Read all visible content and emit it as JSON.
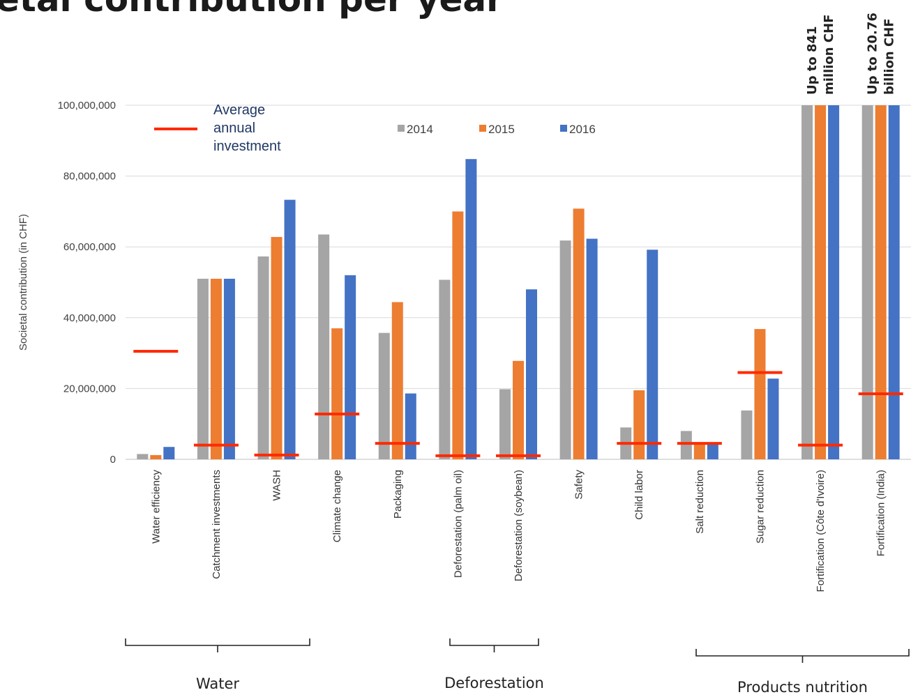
{
  "title": "etal contribution per year",
  "chart_data": {
    "type": "bar",
    "ylabel": "Societal contribution  (in CHF)",
    "ylim": [
      0,
      100000000
    ],
    "yticks": [
      0,
      20000000,
      40000000,
      60000000,
      80000000,
      100000000
    ],
    "ytick_labels": [
      "0",
      "20,000,000",
      "40,000,000",
      "60,000,000",
      "80,000,000",
      "100,000,000"
    ],
    "grid": true,
    "categories": [
      "Water efficiency",
      "Catchment investments",
      "WASH",
      "Climate change",
      "Packaging",
      "Deforestation (palm oil)",
      "Deforestation (soybean)",
      "Safety",
      "Child labor",
      "Salt reduction",
      "Sugar reduction",
      "Fortification (Côte d'Ivoire)",
      "Fortification (India)"
    ],
    "series": [
      {
        "name": "2014",
        "color": "#a5a5a5",
        "values": [
          1500000,
          51000000,
          57300000,
          63500000,
          35700000,
          50700000,
          19800000,
          61800000,
          9000000,
          8000000,
          13800000,
          100000000,
          100000000
        ]
      },
      {
        "name": "2015",
        "color": "#ed7d31",
        "values": [
          1200000,
          51000000,
          62800000,
          37000000,
          44400000,
          70000000,
          27800000,
          70800000,
          19500000,
          4500000,
          36800000,
          100000000,
          100000000
        ]
      },
      {
        "name": "2016",
        "color": "#4472c4",
        "values": [
          3500000,
          51000000,
          73300000,
          52000000,
          18600000,
          84800000,
          48000000,
          62300000,
          59200000,
          4800000,
          22800000,
          100000000,
          100000000
        ]
      }
    ],
    "investment_series": {
      "name": "Average annual investment",
      "color": "#ff2a00",
      "values": [
        30500000,
        4000000,
        1200000,
        12800000,
        4500000,
        1000000,
        1000000,
        null,
        4500000,
        4500000,
        24500000,
        4000000,
        18500000
      ]
    },
    "legend": {
      "position": "top-left",
      "investment_label_lines": [
        "Average",
        "annual",
        "investment"
      ],
      "year_labels": [
        "2014",
        "2015",
        "2016"
      ]
    },
    "annotations": [
      {
        "category_index": 11,
        "lines": [
          "Up to 841",
          "million CHF"
        ]
      },
      {
        "category_index": 12,
        "lines": [
          "Up to 20.76",
          "billion CHF"
        ]
      }
    ],
    "groups": [
      {
        "label": "Water",
        "start": 0,
        "end": 2
      },
      {
        "label": "Deforestation",
        "start": 5,
        "end": 6
      },
      {
        "label": "Products nutrition",
        "start": 9,
        "end": 12
      }
    ]
  }
}
